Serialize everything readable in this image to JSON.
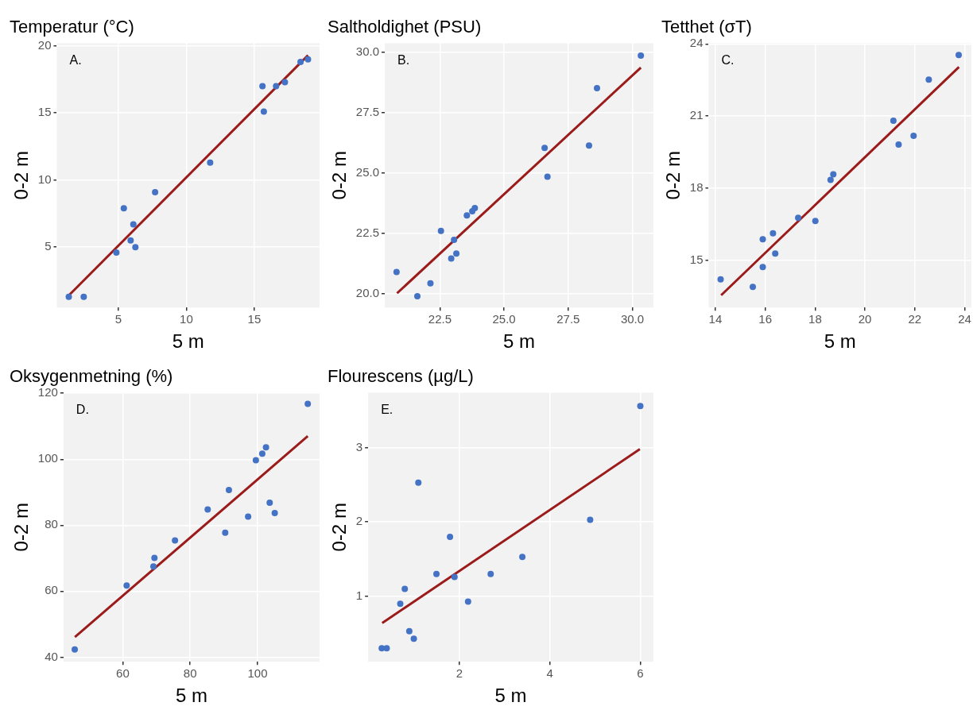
{
  "chart_data": [
    {
      "type": "scatter",
      "title": "Temperatur (°C)",
      "xlabel": "5 m",
      "ylabel": "0-2 m",
      "annotations": [
        "A."
      ],
      "grid": true,
      "xlim": [
        0.47,
        19.8
      ],
      "ylim": [
        0.5,
        20.2
      ],
      "xticks": [
        5,
        10,
        15
      ],
      "yticks": [
        5,
        10,
        15,
        20
      ],
      "series": [
        {
          "type": "scatter",
          "marker": "circle",
          "color": "#4472c4",
          "x": [
            1.35,
            2.45,
            4.85,
            5.4,
            5.9,
            6.1,
            6.25,
            7.7,
            11.75,
            15.6,
            15.7,
            16.6,
            17.25,
            18.4,
            18.95
          ],
          "values": [
            1.3,
            1.3,
            4.6,
            7.9,
            5.5,
            6.7,
            5.0,
            9.1,
            11.3,
            17.0,
            15.1,
            17.0,
            17.3,
            18.8,
            19.0
          ]
        },
        {
          "type": "line",
          "marker": "none",
          "color": "#9b1b1b",
          "x": [
            1.35,
            18.95
          ],
          "values": [
            1.4,
            19.3
          ]
        }
      ]
    },
    {
      "type": "scatter",
      "title": "Saltholdighet (PSU)",
      "xlabel": "5 m",
      "ylabel": "0-2 m",
      "annotations": [
        "B."
      ],
      "grid": true,
      "xlim": [
        20.35,
        30.82
      ],
      "ylim": [
        19.43,
        30.36
      ],
      "xticks": [
        22.5,
        {
          "value": 25,
          "label": "25.0"
        },
        27.5,
        {
          "value": 30,
          "label": "30.0"
        }
      ],
      "yticks": [
        {
          "value": 20,
          "label": "20.0"
        },
        22.5,
        {
          "value": 25,
          "label": "25.0"
        },
        27.5,
        {
          "value": 30,
          "label": "30.0"
        }
      ],
      "series": [
        {
          "type": "scatter",
          "marker": "circle",
          "color": "#4472c4",
          "x": [
            20.81,
            21.62,
            22.13,
            22.54,
            22.94,
            23.05,
            23.14,
            23.55,
            23.76,
            23.86,
            26.58,
            26.69,
            28.31,
            28.62,
            30.33
          ],
          "values": [
            20.9,
            19.9,
            20.43,
            22.6,
            21.46,
            22.23,
            21.66,
            23.24,
            23.41,
            23.54,
            26.03,
            24.84,
            26.13,
            28.5,
            29.85
          ]
        },
        {
          "type": "line",
          "marker": "none",
          "color": "#9b1b1b",
          "x": [
            20.83,
            30.33
          ],
          "values": [
            20.02,
            29.35
          ]
        }
      ]
    },
    {
      "type": "scatter",
      "title": "Tetthet (σT)",
      "xlabel": "5 m",
      "ylabel": "0-2 m",
      "annotations": [
        "C."
      ],
      "grid": true,
      "xlim": [
        13.73,
        24.27
      ],
      "ylim": [
        13.04,
        24.03
      ],
      "xticks": [
        14,
        16,
        18,
        20,
        22,
        24
      ],
      "yticks": [
        15,
        18,
        21,
        24
      ],
      "series": [
        {
          "type": "scatter",
          "marker": "circle",
          "color": "#4472c4",
          "x": [
            14.21,
            15.5,
            15.9,
            15.9,
            16.31,
            16.4,
            17.32,
            18.01,
            18.62,
            18.73,
            21.14,
            21.35,
            21.95,
            22.56,
            23.76
          ],
          "values": [
            14.21,
            13.9,
            15.88,
            14.72,
            16.13,
            15.28,
            16.77,
            16.64,
            18.35,
            18.58,
            20.81,
            19.82,
            20.18,
            22.52,
            23.54
          ]
        },
        {
          "type": "line",
          "marker": "none",
          "color": "#9b1b1b",
          "x": [
            14.23,
            23.77
          ],
          "values": [
            13.55,
            23.04
          ]
        }
      ]
    },
    {
      "type": "scatter",
      "title": "Oksygenmetning (%)",
      "xlabel": "5 m",
      "ylabel": "0-2 m",
      "annotations": [
        "D."
      ],
      "grid": true,
      "xlim": [
        42.4,
        118.4
      ],
      "ylim": [
        38.6,
        120.2
      ],
      "xticks": [
        60,
        80,
        100
      ],
      "yticks": [
        40,
        60,
        80,
        100,
        120
      ],
      "series": [
        {
          "type": "scatter",
          "marker": "circle",
          "color": "#4472c4",
          "x": [
            45.75,
            61.15,
            69.1,
            69.4,
            75.5,
            85.2,
            90.4,
            91.5,
            97.2,
            99.5,
            101.4,
            102.5,
            103.6,
            105.1,
            114.9
          ],
          "values": [
            42.3,
            61.7,
            67.5,
            70.1,
            75.4,
            84.8,
            77.7,
            90.7,
            82.6,
            99.7,
            101.7,
            103.6,
            86.8,
            83.7,
            116.8
          ]
        },
        {
          "type": "line",
          "marker": "none",
          "color": "#9b1b1b",
          "x": [
            45.8,
            114.9
          ],
          "values": [
            46.1,
            107.0
          ]
        }
      ]
    },
    {
      "type": "scatter",
      "title": "Flourescens (µg/L)",
      "xlabel": "5 m",
      "ylabel": "0-2 m",
      "annotations": [
        "E."
      ],
      "grid": true,
      "xlim": [
        -0.02,
        6.29
      ],
      "ylim": [
        0.12,
        3.74
      ],
      "xticks": [
        2,
        4,
        6
      ],
      "yticks": [
        1,
        2,
        3
      ],
      "series": [
        {
          "type": "scatter",
          "marker": "circle",
          "color": "#4472c4",
          "x": [
            0.28,
            0.39,
            0.69,
            0.79,
            0.89,
            0.99,
            1.09,
            1.49,
            1.79,
            1.89,
            2.19,
            2.69,
            3.39,
            4.89,
            6.0
          ],
          "values": [
            0.3,
            0.3,
            0.9,
            1.1,
            0.53,
            0.43,
            2.53,
            1.3,
            1.8,
            1.26,
            0.93,
            1.3,
            1.53,
            2.03,
            3.56
          ]
        },
        {
          "type": "line",
          "marker": "none",
          "color": "#9b1b1b",
          "x": [
            0.29,
            5.99
          ],
          "values": [
            0.64,
            2.98
          ]
        }
      ]
    }
  ]
}
